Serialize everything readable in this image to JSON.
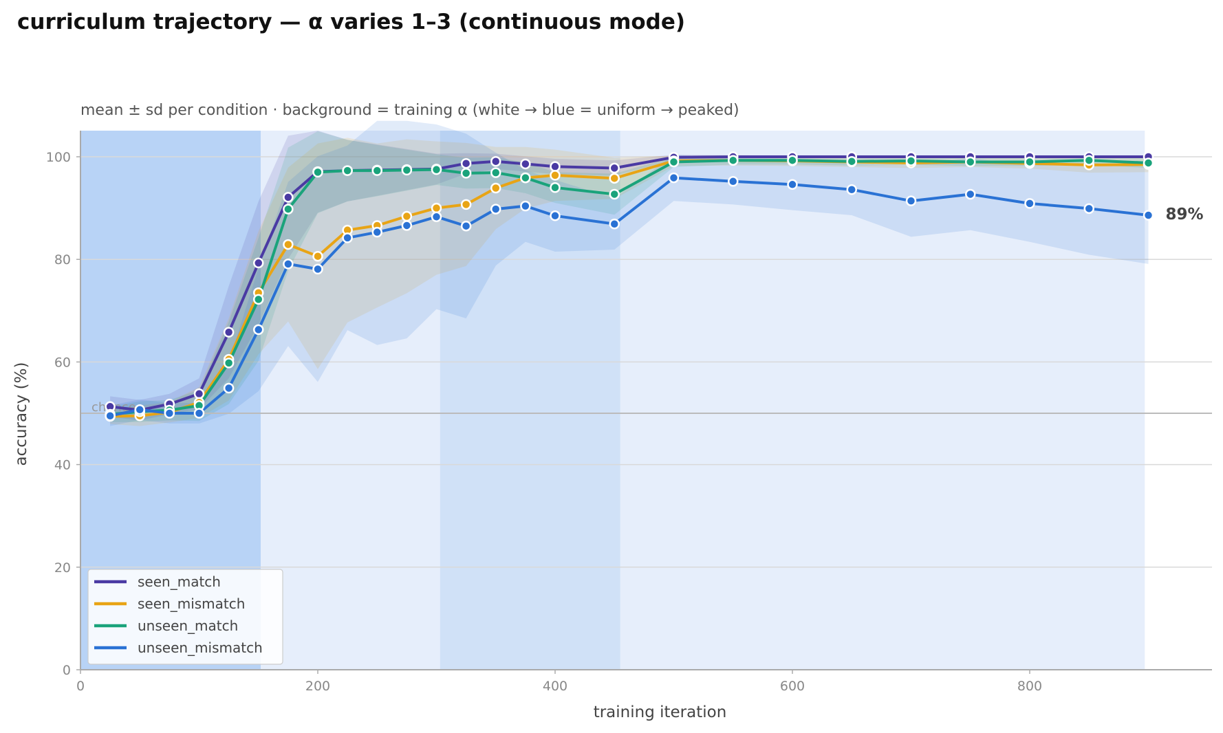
{
  "chart_data": {
    "type": "line",
    "title": "curriculum trajectory — α varies 1–3 (continuous mode)",
    "subtitle": "mean ± sd per condition · background = training α (white → blue = uniform → peaked)",
    "xlabel": "training iteration",
    "ylabel": "accuracy (%)",
    "xlim": [
      0,
      950
    ],
    "ylim": [
      0,
      105
    ],
    "xticks": [
      0,
      200,
      400,
      600,
      800
    ],
    "yticks": [
      0,
      20,
      40,
      60,
      80,
      100
    ],
    "grid": "horizontal",
    "legend_position": "lower-left",
    "reference_line": {
      "label": "chance",
      "y": 50
    },
    "end_label": {
      "text": "89%",
      "series": "unseen_mismatch"
    },
    "background_bands": [
      {
        "x_start": 0,
        "x_end": 152,
        "level": "peaked",
        "color": "#b8d3f6"
      },
      {
        "x_start": 152,
        "x_end": 303,
        "level": "uniform",
        "color": "#e6eefb"
      },
      {
        "x_start": 303,
        "x_end": 455,
        "level": "mid",
        "color": "#d0e1f7"
      },
      {
        "x_start": 455,
        "x_end": 897,
        "level": "uniform",
        "color": "#e6eefb"
      }
    ],
    "x": [
      25,
      50,
      75,
      100,
      125,
      150,
      175,
      200,
      225,
      250,
      275,
      300,
      325,
      350,
      375,
      400,
      450,
      500,
      550,
      600,
      650,
      700,
      750,
      800,
      850,
      900
    ],
    "series": [
      {
        "name": "seen_match",
        "color": "#4a3aa3",
        "values": [
          51.3,
          50.6,
          51.8,
          53.8,
          65.8,
          79.3,
          92.1,
          97.1,
          97.3,
          97.4,
          97.5,
          97.6,
          98.7,
          99.1,
          98.6,
          98.1,
          97.8,
          99.9,
          100,
          100,
          100,
          100,
          100,
          100,
          100,
          100
        ],
        "sd": [
          2,
          2,
          2,
          3,
          9,
          12,
          12,
          8,
          6,
          5,
          4,
          3,
          2,
          1.5,
          1.5,
          1.5,
          1.5,
          0.5,
          0.3,
          0.3,
          0.3,
          0.3,
          0.3,
          0.3,
          0.3,
          0.3
        ]
      },
      {
        "name": "seen_mismatch",
        "color": "#e8a415",
        "values": [
          49.4,
          49.5,
          50.2,
          52.1,
          60.5,
          73.5,
          82.9,
          80.6,
          85.7,
          86.6,
          88.4,
          90.0,
          90.7,
          93.9,
          95.9,
          96.4,
          95.8,
          99.2,
          99.3,
          99.2,
          99.0,
          98.8,
          99.0,
          98.7,
          98.4,
          98.5
        ],
        "sd": [
          1.5,
          2,
          2,
          3,
          8,
          12,
          15,
          22,
          18,
          16,
          15,
          13,
          12,
          8,
          6,
          5,
          4,
          1,
          1,
          1,
          1,
          1,
          1,
          1,
          1.5,
          1.5
        ]
      },
      {
        "name": "unseen_match",
        "color": "#1aa37b",
        "values": [
          49.8,
          50.3,
          50.6,
          51.5,
          59.8,
          72.2,
          89.8,
          97.0,
          97.3,
          97.3,
          97.4,
          97.5,
          96.8,
          96.9,
          95.9,
          94.0,
          92.7,
          99.0,
          99.3,
          99.3,
          99.1,
          99.2,
          99.0,
          99.0,
          99.3,
          98.8
        ],
        "sd": [
          1.5,
          2,
          2,
          3,
          8,
          12,
          12,
          8,
          6,
          5,
          4,
          3,
          3,
          3,
          3,
          3,
          4,
          1,
          0.8,
          0.8,
          0.8,
          0.8,
          0.8,
          0.8,
          0.8,
          1
        ]
      },
      {
        "name": "unseen_mismatch",
        "color": "#2a72d4",
        "values": [
          49.5,
          50.7,
          50.0,
          50.0,
          54.9,
          66.3,
          79.1,
          78.1,
          84.2,
          85.3,
          86.6,
          88.3,
          86.5,
          89.8,
          90.4,
          88.5,
          86.9,
          95.9,
          95.2,
          94.6,
          93.6,
          91.4,
          92.7,
          90.9,
          89.9,
          88.6
        ],
        "sd": [
          2,
          2,
          2,
          2,
          5,
          12,
          16,
          22,
          18,
          22,
          22,
          18,
          18,
          11,
          7,
          7,
          5,
          4.5,
          4.5,
          5,
          5,
          7,
          7,
          7.5,
          9,
          9.5
        ]
      }
    ]
  }
}
